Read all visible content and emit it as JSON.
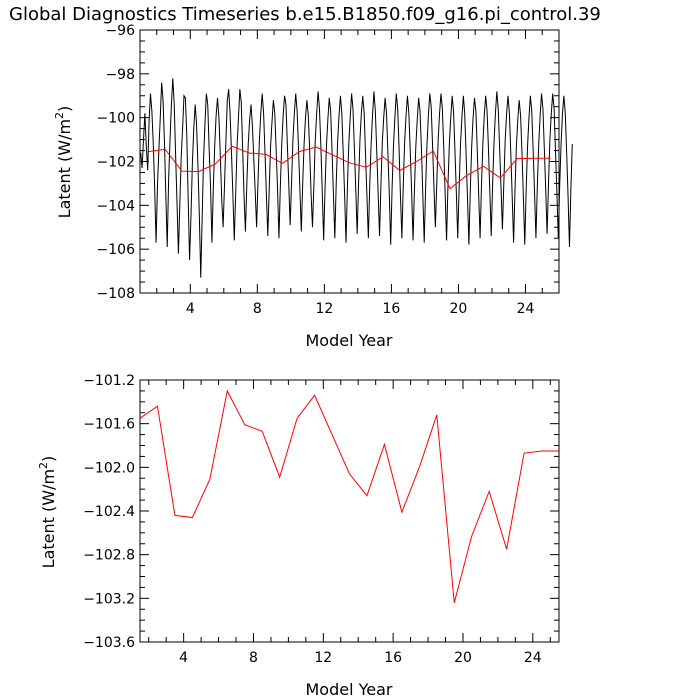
{
  "title": "Global Diagnostics Timeseries b.e15.B1850.f09_g16.pi_control.39",
  "colors": {
    "monthly": "#000000",
    "annual": "#ff0000"
  },
  "chart_data": [
    {
      "type": "line",
      "xlabel": "Model Year",
      "ylabel_main": "Latent (W/m",
      "ylabel_sup": "2",
      "ylabel_tail": ")",
      "xlim": [
        1,
        26
      ],
      "ylim": [
        -108,
        -96
      ],
      "xticks": [
        4,
        8,
        12,
        16,
        20,
        24
      ],
      "xtick_labels": [
        "4",
        "8",
        "12",
        "16",
        "20",
        "24"
      ],
      "yticks": [
        -108,
        -106,
        -104,
        -102,
        -100,
        -98,
        -96
      ],
      "ytick_labels": [
        "−108",
        "−106",
        "−104",
        "−102",
        "−100",
        "−98",
        "−96"
      ],
      "series": [
        {
          "x_start": 1.0417,
          "x_step": 0.08333,
          "values": [
            -101.6,
            -102.3,
            -101.0,
            -99.8,
            -101.3,
            -102.4,
            -100.2,
            -98.9,
            -99.7,
            -101.2,
            -103.2,
            -105.7,
            -103.1,
            -101.5,
            -100.0,
            -98.4,
            -99.2,
            -101.1,
            -103.6,
            -105.9,
            -102.8,
            -101.0,
            -99.4,
            -98.2,
            -99.4,
            -101.7,
            -103.9,
            -106.2,
            -104.0,
            -101.8,
            -100.5,
            -99.0,
            -99.1,
            -100.8,
            -103.7,
            -106.5,
            -104.5,
            -102.1,
            -100.5,
            -99.4,
            -100.3,
            -102.2,
            -104.5,
            -107.3,
            -104.6,
            -101.9,
            -100.3,
            -98.9,
            -99.4,
            -101.4,
            -103.1,
            -105.7,
            -103.2,
            -101.3,
            -99.9,
            -99.1,
            -100.0,
            -101.7,
            -103.7,
            -105.0,
            -103.1,
            -101.1,
            -99.2,
            -98.7,
            -99.8,
            -101.6,
            -103.5,
            -105.6,
            -103.5,
            -101.3,
            -100.0,
            -98.7,
            -99.3,
            -101.4,
            -103.6,
            -105.2,
            -103.0,
            -101.2,
            -100.1,
            -99.4,
            -100.4,
            -101.9,
            -103.4,
            -105.0,
            -102.9,
            -101.0,
            -99.8,
            -98.9,
            -99.8,
            -101.6,
            -103.5,
            -105.4,
            -103.3,
            -101.3,
            -100.2,
            -99.2,
            -99.8,
            -101.5,
            -103.3,
            -105.5,
            -103.1,
            -101.2,
            -99.9,
            -99.0,
            -99.4,
            -101.2,
            -103.0,
            -104.9,
            -103.0,
            -101.0,
            -99.8,
            -98.9,
            -99.7,
            -101.4,
            -103.3,
            -105.2,
            -103.0,
            -101.2,
            -100.0,
            -99.2,
            -99.9,
            -101.5,
            -103.5,
            -105.0,
            -103.1,
            -101.0,
            -99.8,
            -98.8,
            -99.6,
            -101.3,
            -103.4,
            -105.6,
            -103.2,
            -101.3,
            -100.1,
            -99.1,
            -99.7,
            -101.5,
            -103.5,
            -105.5,
            -103.0,
            -101.1,
            -99.9,
            -99.0,
            -99.8,
            -101.6,
            -103.5,
            -105.7,
            -103.2,
            -101.2,
            -100.0,
            -98.9,
            -99.6,
            -101.4,
            -103.3,
            -105.3,
            -103.0,
            -101.0,
            -99.8,
            -99.0,
            -99.8,
            -101.7,
            -103.6,
            -105.5,
            -103.1,
            -101.2,
            -99.9,
            -98.8,
            -99.7,
            -101.5,
            -103.4,
            -105.4,
            -103.1,
            -101.1,
            -100.0,
            -99.1,
            -99.8,
            -101.6,
            -103.5,
            -105.8,
            -103.2,
            -101.3,
            -100.0,
            -98.9,
            -99.6,
            -101.4,
            -103.6,
            -105.5,
            -103.1,
            -101.1,
            -99.9,
            -99.0,
            -99.8,
            -101.5,
            -103.4,
            -105.6,
            -103.3,
            -101.3,
            -100.1,
            -99.1,
            -99.7,
            -101.4,
            -103.5,
            -105.7,
            -103.2,
            -101.2,
            -99.9,
            -98.9,
            -99.5,
            -101.3,
            -103.2,
            -105.0,
            -103.0,
            -101.0,
            -99.8,
            -98.9,
            -99.6,
            -101.4,
            -103.5,
            -105.6,
            -103.1,
            -101.2,
            -100.0,
            -99.0,
            -99.7,
            -101.5,
            -103.4,
            -105.5,
            -103.2,
            -101.2,
            -100.0,
            -99.0,
            -99.8,
            -101.7,
            -103.7,
            -105.8,
            -103.3,
            -101.3,
            -100.0,
            -99.1,
            -99.7,
            -101.5,
            -103.5,
            -105.5,
            -103.1,
            -101.2,
            -99.9,
            -99.0,
            -99.7,
            -101.4,
            -103.4,
            -105.4,
            -103.0,
            -101.1,
            -99.8,
            -98.8,
            -99.6,
            -101.4,
            -103.2,
            -105.1,
            -103.0,
            -101.0,
            -99.8,
            -99.0,
            -99.8,
            -101.6,
            -103.6,
            -105.7,
            -103.3,
            -101.3,
            -100.1,
            -99.2,
            -99.9,
            -101.6,
            -103.6,
            -105.8,
            -103.3,
            -101.3,
            -100.0,
            -99.0,
            -99.7,
            -101.5,
            -103.4,
            -105.5,
            -103.1,
            -101.2,
            -99.9,
            -98.9,
            -99.6,
            -101.4,
            -103.3,
            -105.3,
            -103.0,
            -101.0,
            -99.8,
            -98.9,
            -99.6,
            -101.5,
            -103.4,
            -105.5,
            -103.1,
            -101.2,
            -99.8,
            -99.0,
            -99.8,
            -101.6,
            -103.6,
            -105.9,
            -103.3,
            -101.2
          ],
          "color": "#000000"
        },
        {
          "x": [
            1.5,
            2.5,
            3.5,
            4.5,
            5.5,
            6.5,
            7.5,
            8.5,
            9.5,
            10.5,
            11.5,
            12.5,
            13.5,
            14.5,
            15.5,
            16.5,
            17.5,
            18.5,
            19.5,
            20.5,
            21.5,
            22.5,
            23.5,
            24.5,
            25.5
          ],
          "values": [
            -101.55,
            -101.44,
            -102.44,
            -102.46,
            -102.11,
            -101.3,
            -101.61,
            -101.67,
            -102.09,
            -101.55,
            -101.34,
            -101.7,
            -102.06,
            -102.26,
            -101.79,
            -102.41,
            -102.0,
            -101.52,
            -103.24,
            -102.63,
            -102.22,
            -102.75,
            -101.87,
            -101.85,
            -101.85
          ],
          "color": "#ff0000"
        }
      ]
    },
    {
      "type": "line",
      "xlabel": "Model Year",
      "ylabel_main": "Latent (W/m",
      "ylabel_sup": "2",
      "ylabel_tail": ")",
      "xlim": [
        1.5,
        25.5
      ],
      "ylim": [
        -103.6,
        -101.2
      ],
      "xticks": [
        4,
        8,
        12,
        16,
        20,
        24
      ],
      "xtick_labels": [
        "4",
        "8",
        "12",
        "16",
        "20",
        "24"
      ],
      "yticks": [
        -103.6,
        -103.2,
        -102.8,
        -102.4,
        -102.0,
        -101.6,
        -101.2
      ],
      "ytick_labels": [
        "−103.6",
        "−103.2",
        "−102.8",
        "−102.4",
        "−102.0",
        "−101.6",
        "−101.2"
      ],
      "series": [
        {
          "x": [
            1.5,
            2.5,
            3.5,
            4.5,
            5.5,
            6.5,
            7.5,
            8.5,
            9.5,
            10.5,
            11.5,
            12.5,
            13.5,
            14.5,
            15.5,
            16.5,
            17.5,
            18.5,
            19.5,
            20.5,
            21.5,
            22.5,
            23.5,
            24.5,
            25.5
          ],
          "values": [
            -101.55,
            -101.44,
            -102.44,
            -102.46,
            -102.11,
            -101.3,
            -101.61,
            -101.67,
            -102.09,
            -101.55,
            -101.34,
            -101.7,
            -102.06,
            -102.26,
            -101.79,
            -102.41,
            -102.0,
            -101.52,
            -103.24,
            -102.63,
            -102.22,
            -102.75,
            -101.87,
            -101.85,
            -101.85
          ],
          "color": "#ff0000"
        }
      ]
    }
  ]
}
